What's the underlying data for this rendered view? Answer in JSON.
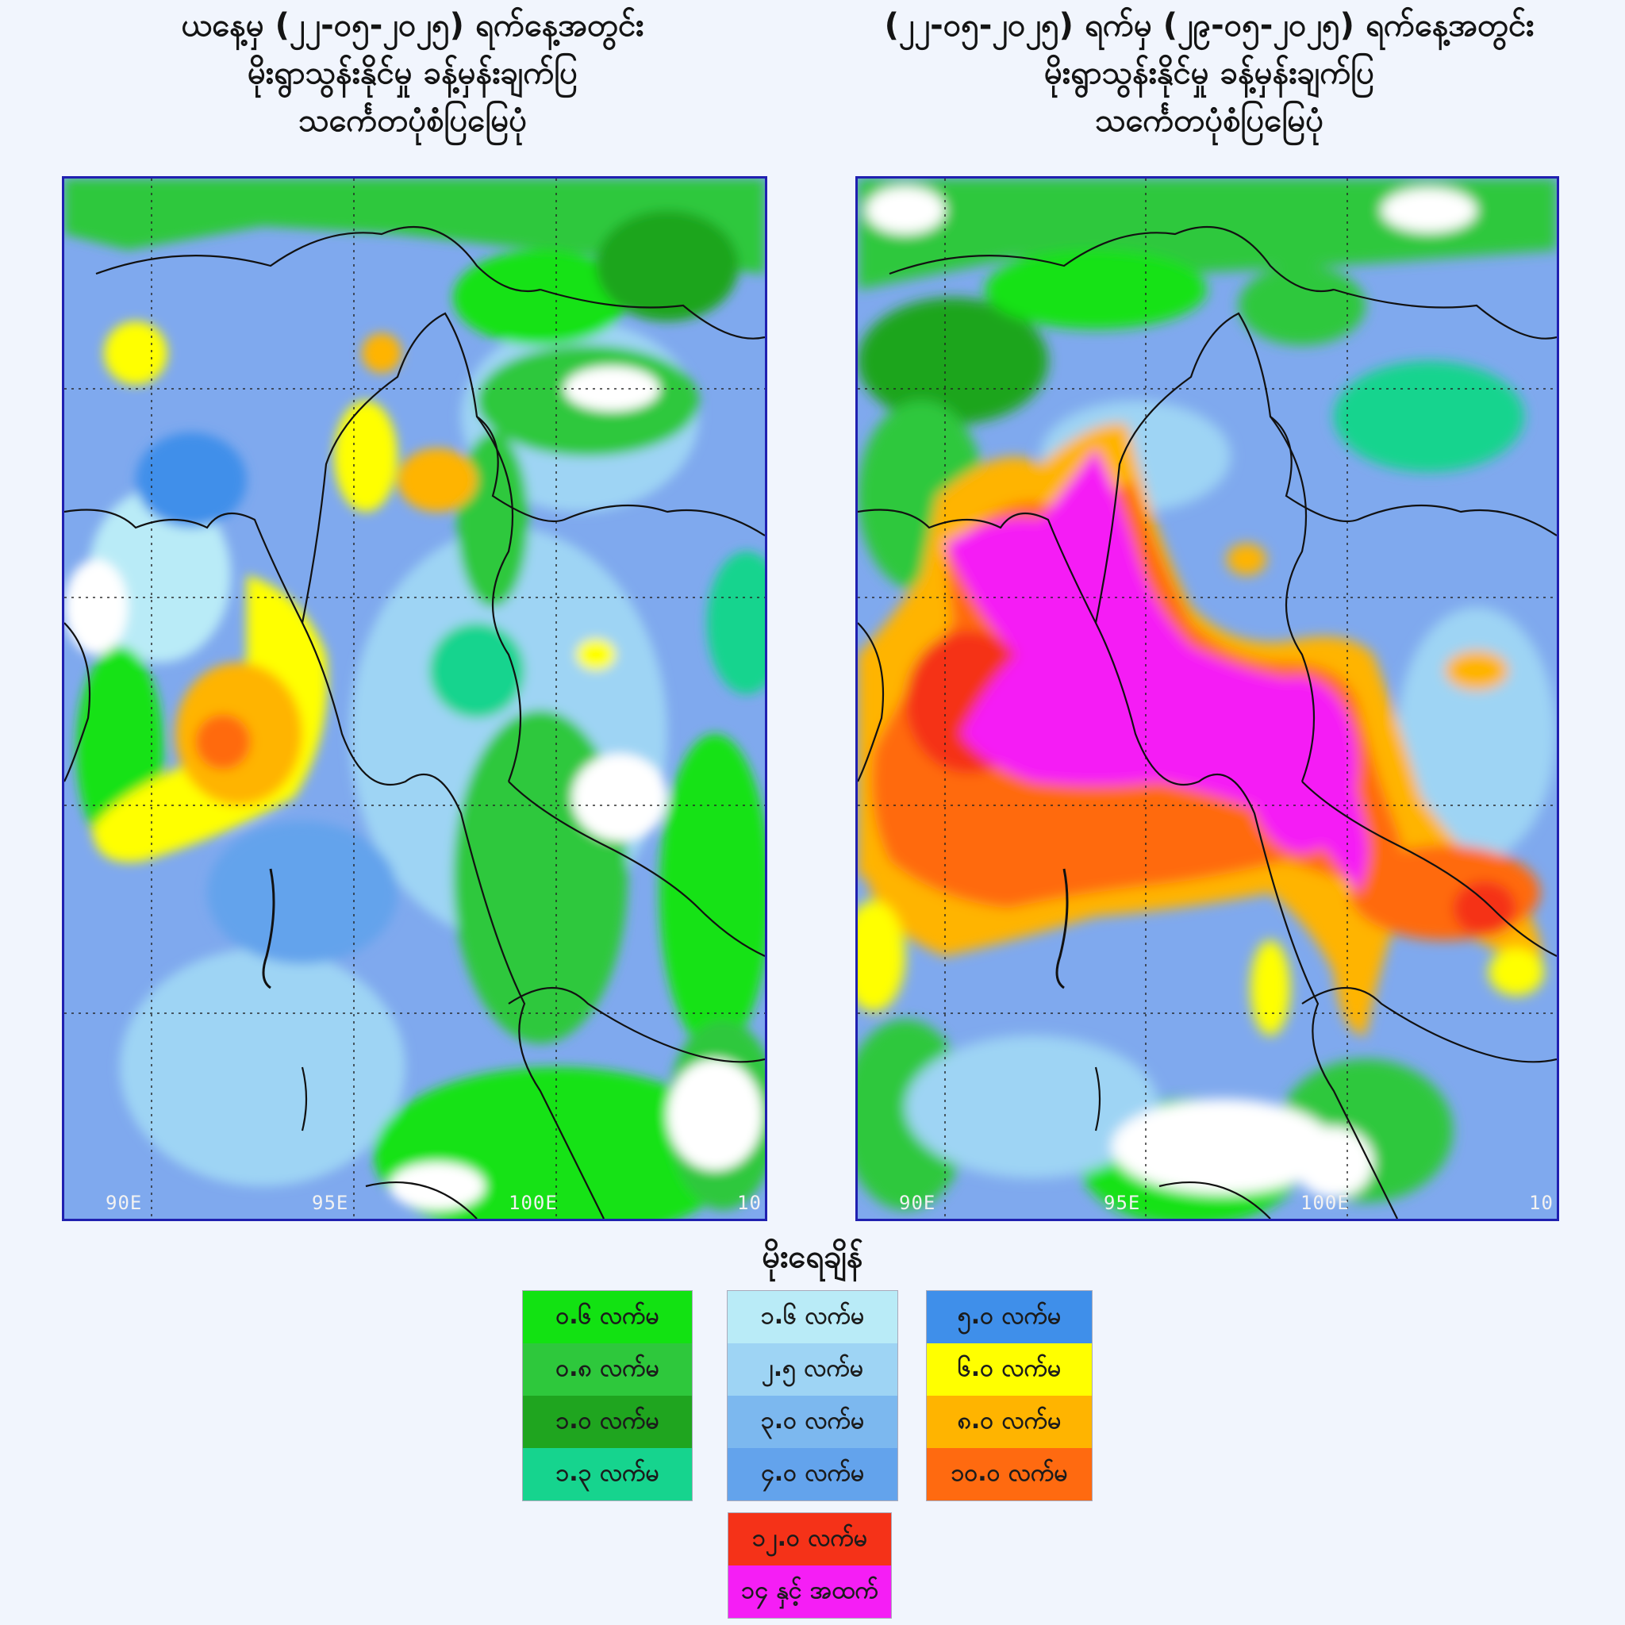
{
  "left_map": {
    "title_lines": [
      "ယနေ့မှ (၂၂-၀၅-၂၀၂၅) ရက်နေ့အတွင်း",
      "မိုးရွာသွန်းနိုင်မှု ခန့်မှန်းချက်ပြ",
      "သင်္ကေတပုံစံပြမြေပုံ"
    ],
    "longitude_labels": [
      "90E",
      "95E",
      "100E",
      "10"
    ]
  },
  "right_map": {
    "title_lines": [
      "(၂၂-၀၅-၂၀၂၅) ရက်မှ (၂၉-၀၅-၂၀၂၅) ရက်နေ့အတွင်း",
      "မိုးရွာသွန်းနိုင်မှု ခန့်မှန်းချက်ပြ",
      "သင်္ကေတပုံစံပြမြေပုံ"
    ],
    "longitude_labels": [
      "90E",
      "95E",
      "100E",
      "10"
    ]
  },
  "legend": {
    "title": "မိုးရေချိန်",
    "columns": [
      [
        {
          "label": "၀.၆ လက်မ",
          "color": "#12e212"
        },
        {
          "label": "၀.၈ လက်မ",
          "color": "#2ec83c"
        },
        {
          "label": "၁.၀ လက်မ",
          "color": "#1fa51f"
        },
        {
          "label": "၁.၃ လက်မ",
          "color": "#16d48e"
        }
      ],
      [
        {
          "label": "၁.၆ လက်မ",
          "color": "#b9ebf7"
        },
        {
          "label": "၂.၅ လက်မ",
          "color": "#9ed4f4"
        },
        {
          "label": "၃.၀ လက်မ",
          "color": "#7cb8ef"
        },
        {
          "label": "၄.၀ လက်မ",
          "color": "#63a3ec"
        }
      ],
      [
        {
          "label": "၅.၀ လက်မ",
          "color": "#3f8fea"
        },
        {
          "label": "၆.၀ လက်မ",
          "color": "#ffff00"
        },
        {
          "label": "၈.၀ လက်မ",
          "color": "#ffb400"
        },
        {
          "label": "၁၀.၀ လက်မ",
          "color": "#ff6a10"
        }
      ],
      [
        {
          "label": "၁၂.၀ လက်မ",
          "color": "#f53218"
        },
        {
          "label": "၁၄ နှင့် အထက်",
          "color": "#f51ef5"
        }
      ]
    ]
  }
}
